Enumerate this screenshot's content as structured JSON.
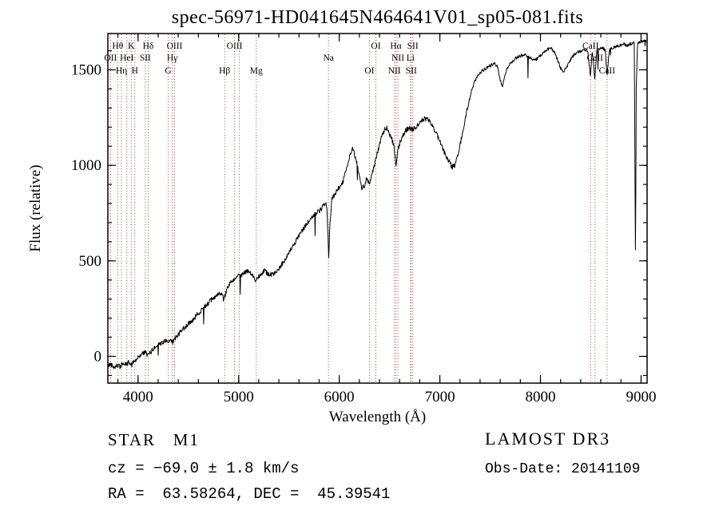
{
  "chart_data": {
    "type": "line",
    "title": "spec-56971-HD041645N464641V01_sp05-081.fits",
    "xlabel": "Wavelength (Å)",
    "ylabel": "Flux (relative)",
    "xlim": [
      3700,
      9060
    ],
    "ylim": [
      -140,
      1690
    ],
    "xticks": [
      4000,
      5000,
      6000,
      7000,
      8000,
      9000
    ],
    "yticks": [
      0,
      500,
      1000,
      1500
    ],
    "x_minor_step": 200,
    "y_minor_step": 100,
    "grid": false,
    "legend": "none",
    "line_color": "#000000",
    "marker_line_color": "#aa4444",
    "noise": {
      "seed": 42,
      "amplitude_blue": 13,
      "amplitude_red": 8,
      "red_start": 7300,
      "spike_probability": 0.015,
      "spike_min": 30,
      "spike_max": 120,
      "sample_step": 4
    },
    "spectral_lines": [
      {
        "wavelength": 3727,
        "label": "OII",
        "row": 2
      },
      {
        "wavelength": 3798,
        "label": "Hθ",
        "row": 1
      },
      {
        "wavelength": 3835,
        "label": "Hη",
        "row": 3
      },
      {
        "wavelength": 3889,
        "label": "HeI",
        "row": 2
      },
      {
        "wavelength": 3933,
        "label": "K",
        "row": 1
      },
      {
        "wavelength": 3968,
        "label": "H",
        "row": 3
      },
      {
        "wavelength": 4072,
        "label": "SII",
        "row": 2
      },
      {
        "wavelength": 4101,
        "label": "Hδ",
        "row": 1
      },
      {
        "wavelength": 4300,
        "label": "G",
        "row": 3
      },
      {
        "wavelength": 4340,
        "label": "Hγ",
        "row": 2
      },
      {
        "wavelength": 4363,
        "label": "OIII",
        "row": 1
      },
      {
        "wavelength": 4861,
        "label": "Hβ",
        "row": 3
      },
      {
        "wavelength": 4959,
        "label": "OIII",
        "row": 1
      },
      {
        "wavelength": 5007,
        "label": "",
        "row": 1
      },
      {
        "wavelength": 5175,
        "label": "Mg",
        "row": 3
      },
      {
        "wavelength": 5893,
        "label": "Na",
        "row": 2
      },
      {
        "wavelength": 6300,
        "label": "OI",
        "row": 3
      },
      {
        "wavelength": 6364,
        "label": "OI",
        "row": 1
      },
      {
        "wavelength": 6548,
        "label": "NII",
        "row": 3
      },
      {
        "wavelength": 6563,
        "label": "Hα",
        "row": 1
      },
      {
        "wavelength": 6583,
        "label": "NII",
        "row": 2
      },
      {
        "wavelength": 6708,
        "label": "Li",
        "row": 2
      },
      {
        "wavelength": 6716,
        "label": "SII",
        "row": 3
      },
      {
        "wavelength": 6731,
        "label": "SII",
        "row": 1
      },
      {
        "wavelength": 8498,
        "label": "CaII",
        "row": 1
      },
      {
        "wavelength": 8542,
        "label": "CaII",
        "row": 2
      },
      {
        "wavelength": 8662,
        "label": "CaII",
        "row": 3
      }
    ],
    "spectrum_anchors": [
      [
        3700,
        -50
      ],
      [
        3730,
        -40
      ],
      [
        3760,
        -55
      ],
      [
        3790,
        -45
      ],
      [
        3820,
        -55
      ],
      [
        3850,
        -35
      ],
      [
        3880,
        -45
      ],
      [
        3910,
        -30
      ],
      [
        3935,
        -45
      ],
      [
        3960,
        -25
      ],
      [
        3985,
        -15
      ],
      [
        4010,
        0
      ],
      [
        4040,
        15
      ],
      [
        4070,
        20
      ],
      [
        4100,
        5
      ],
      [
        4130,
        25
      ],
      [
        4160,
        45
      ],
      [
        4190,
        55
      ],
      [
        4220,
        65
      ],
      [
        4250,
        75
      ],
      [
        4280,
        80
      ],
      [
        4300,
        70
      ],
      [
        4325,
        80
      ],
      [
        4345,
        72
      ],
      [
        4370,
        95
      ],
      [
        4400,
        115
      ],
      [
        4440,
        140
      ],
      [
        4480,
        160
      ],
      [
        4520,
        180
      ],
      [
        4560,
        200
      ],
      [
        4600,
        225
      ],
      [
        4650,
        255
      ],
      [
        4700,
        280
      ],
      [
        4750,
        305
      ],
      [
        4800,
        325
      ],
      [
        4861,
        315
      ],
      [
        4890,
        360
      ],
      [
        4920,
        385
      ],
      [
        4950,
        405
      ],
      [
        4980,
        415
      ],
      [
        5010,
        425
      ],
      [
        5050,
        435
      ],
      [
        5090,
        445
      ],
      [
        5130,
        430
      ],
      [
        5170,
        400
      ],
      [
        5210,
        425
      ],
      [
        5250,
        450
      ],
      [
        5290,
        435
      ],
      [
        5330,
        425
      ],
      [
        5370,
        445
      ],
      [
        5410,
        465
      ],
      [
        5460,
        505
      ],
      [
        5510,
        550
      ],
      [
        5560,
        595
      ],
      [
        5610,
        640
      ],
      [
        5660,
        680
      ],
      [
        5710,
        715
      ],
      [
        5760,
        745
      ],
      [
        5810,
        765
      ],
      [
        5850,
        790
      ],
      [
        5875,
        800
      ],
      [
        5888,
        640
      ],
      [
        5896,
        515
      ],
      [
        5906,
        680
      ],
      [
        5925,
        820
      ],
      [
        5960,
        855
      ],
      [
        6000,
        885
      ],
      [
        6040,
        920
      ],
      [
        6080,
        1000
      ],
      [
        6110,
        1060
      ],
      [
        6130,
        1090
      ],
      [
        6150,
        1060
      ],
      [
        6175,
        1010
      ],
      [
        6200,
        940
      ],
      [
        6225,
        880
      ],
      [
        6250,
        895
      ],
      [
        6275,
        935
      ],
      [
        6300,
        905
      ],
      [
        6325,
        955
      ],
      [
        6350,
        1000
      ],
      [
        6375,
        1055
      ],
      [
        6400,
        1110
      ],
      [
        6425,
        1155
      ],
      [
        6450,
        1185
      ],
      [
        6475,
        1195
      ],
      [
        6500,
        1165
      ],
      [
        6525,
        1135
      ],
      [
        6545,
        1095
      ],
      [
        6563,
        1000
      ],
      [
        6585,
        1085
      ],
      [
        6610,
        1130
      ],
      [
        6640,
        1165
      ],
      [
        6670,
        1190
      ],
      [
        6700,
        1195
      ],
      [
        6730,
        1185
      ],
      [
        6760,
        1200
      ],
      [
        6790,
        1220
      ],
      [
        6820,
        1235
      ],
      [
        6850,
        1245
      ],
      [
        6880,
        1240
      ],
      [
        6910,
        1225
      ],
      [
        6940,
        1195
      ],
      [
        6970,
        1160
      ],
      [
        7000,
        1125
      ],
      [
        7030,
        1085
      ],
      [
        7060,
        1050
      ],
      [
        7090,
        1020
      ],
      [
        7120,
        990
      ],
      [
        7150,
        1000
      ],
      [
        7180,
        1060
      ],
      [
        7210,
        1130
      ],
      [
        7240,
        1210
      ],
      [
        7270,
        1290
      ],
      [
        7300,
        1360
      ],
      [
        7330,
        1415
      ],
      [
        7360,
        1455
      ],
      [
        7390,
        1480
      ],
      [
        7420,
        1495
      ],
      [
        7450,
        1505
      ],
      [
        7480,
        1515
      ],
      [
        7510,
        1525
      ],
      [
        7540,
        1535
      ],
      [
        7570,
        1520
      ],
      [
        7600,
        1450
      ],
      [
        7620,
        1405
      ],
      [
        7640,
        1455
      ],
      [
        7665,
        1500
      ],
      [
        7690,
        1525
      ],
      [
        7720,
        1545
      ],
      [
        7750,
        1560
      ],
      [
        7780,
        1570
      ],
      [
        7810,
        1575
      ],
      [
        7840,
        1580
      ],
      [
        7870,
        1570
      ],
      [
        7900,
        1560
      ],
      [
        7930,
        1550
      ],
      [
        7960,
        1555
      ],
      [
        7990,
        1570
      ],
      [
        8020,
        1585
      ],
      [
        8050,
        1600
      ],
      [
        8080,
        1610
      ],
      [
        8110,
        1615
      ],
      [
        8140,
        1590
      ],
      [
        8170,
        1550
      ],
      [
        8200,
        1510
      ],
      [
        8230,
        1490
      ],
      [
        8260,
        1515
      ],
      [
        8290,
        1545
      ],
      [
        8320,
        1570
      ],
      [
        8350,
        1585
      ],
      [
        8380,
        1595
      ],
      [
        8410,
        1600
      ],
      [
        8440,
        1605
      ],
      [
        8470,
        1600
      ],
      [
        8495,
        1470
      ],
      [
        8515,
        1595
      ],
      [
        8540,
        1455
      ],
      [
        8560,
        1600
      ],
      [
        8590,
        1610
      ],
      [
        8620,
        1615
      ],
      [
        8645,
        1600
      ],
      [
        8662,
        1470
      ],
      [
        8685,
        1605
      ],
      [
        8715,
        1615
      ],
      [
        8745,
        1620
      ],
      [
        8775,
        1625
      ],
      [
        8805,
        1630
      ],
      [
        8835,
        1635
      ],
      [
        8865,
        1625
      ],
      [
        8895,
        1635
      ],
      [
        8920,
        1640
      ],
      [
        8933,
        1645
      ],
      [
        8940,
        900
      ],
      [
        8945,
        480
      ],
      [
        8952,
        1400
      ],
      [
        8965,
        1635
      ],
      [
        8980,
        1645
      ],
      [
        9000,
        1650
      ],
      [
        9020,
        1645
      ],
      [
        9040,
        1655
      ],
      [
        9055,
        1650
      ]
    ]
  },
  "footer": {
    "class_line": "STAR   M1",
    "survey": "LAMOST DR3",
    "cz_line": "cz = −69.0 ± 1.8 km/s",
    "obs_date": "Obs-Date: 20141109",
    "radec_line": "RA =  63.58264, DEC =  45.39541"
  }
}
